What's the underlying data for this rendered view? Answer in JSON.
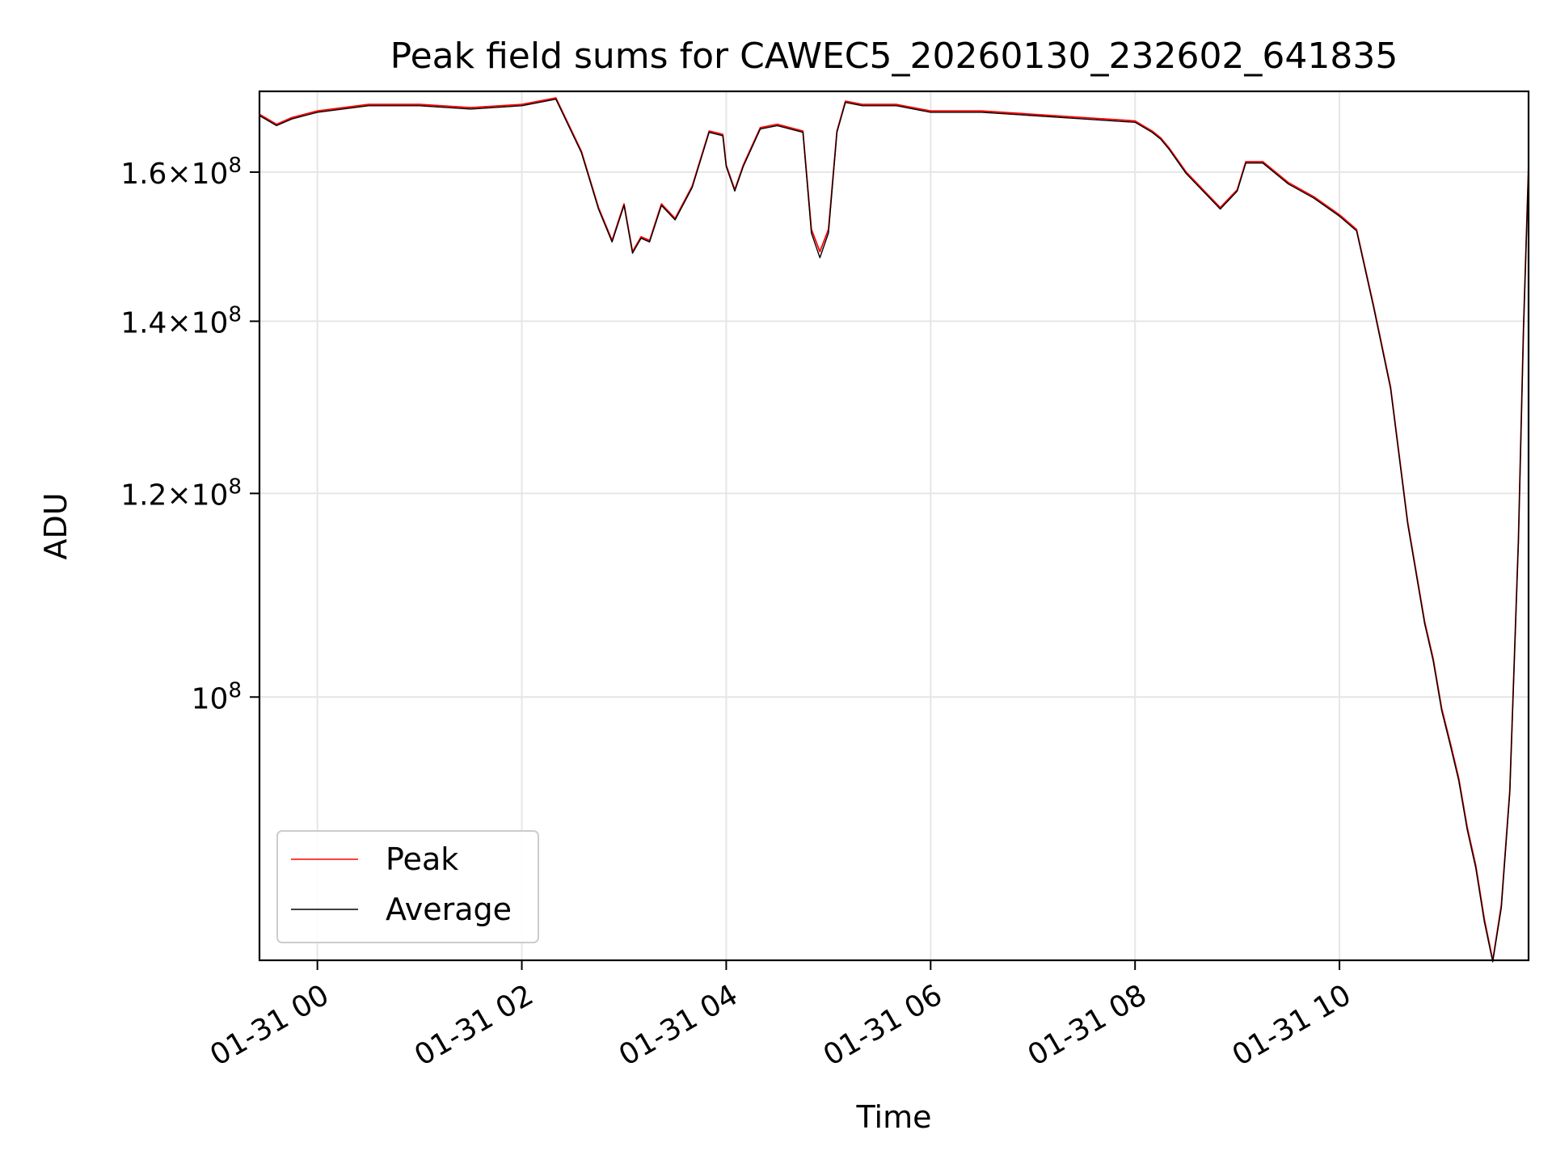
{
  "chart_data": {
    "type": "line",
    "title": "Peak field sums for CAWEC5_20260130_232602_641835",
    "xlabel": "Time",
    "ylabel": "ADU",
    "y_scale": "log",
    "xlim": [
      "2026-01-30 23:26",
      "2026-01-31 11:51"
    ],
    "ylim": [
      79000000.0,
      172000000.0
    ],
    "grid": true,
    "legend_position": "lower-left",
    "x_ticks": [
      {
        "value": "2026-01-31 00:00",
        "label": "01-31 00"
      },
      {
        "value": "2026-01-31 02:00",
        "label": "01-31 02"
      },
      {
        "value": "2026-01-31 04:00",
        "label": "01-31 04"
      },
      {
        "value": "2026-01-31 06:00",
        "label": "01-31 06"
      },
      {
        "value": "2026-01-31 08:00",
        "label": "01-31 08"
      },
      {
        "value": "2026-01-31 10:00",
        "label": "01-31 10"
      }
    ],
    "y_ticks": [
      {
        "value": 160000000,
        "label_mantissa": "1.6",
        "label_base": "10",
        "label_exp": "8"
      },
      {
        "value": 140000000,
        "label_mantissa": "1.4",
        "label_base": "10",
        "label_exp": "8"
      },
      {
        "value": 120000000,
        "label_mantissa": "1.2",
        "label_base": "10",
        "label_exp": "8"
      },
      {
        "value": 100000000,
        "label_mantissa": "",
        "label_base": "10",
        "label_exp": "8"
      }
    ],
    "series": [
      {
        "name": "Peak",
        "color": "#ff0000",
        "x": [
          "2026-01-30 23:26",
          "2026-01-30 23:36",
          "2026-01-30 23:45",
          "2026-01-31 00:00",
          "2026-01-31 00:30",
          "2026-01-31 01:00",
          "2026-01-31 01:30",
          "2026-01-31 02:00",
          "2026-01-31 02:20",
          "2026-01-31 02:35",
          "2026-01-31 02:45",
          "2026-01-31 02:53",
          "2026-01-31 03:00",
          "2026-01-31 03:05",
          "2026-01-31 03:10",
          "2026-01-31 03:15",
          "2026-01-31 03:22",
          "2026-01-31 03:30",
          "2026-01-31 03:40",
          "2026-01-31 03:50",
          "2026-01-31 03:58",
          "2026-01-31 04:00",
          "2026-01-31 04:05",
          "2026-01-31 04:10",
          "2026-01-31 04:20",
          "2026-01-31 04:30",
          "2026-01-31 04:45",
          "2026-01-31 04:50",
          "2026-01-31 04:55",
          "2026-01-31 05:00",
          "2026-01-31 05:05",
          "2026-01-31 05:10",
          "2026-01-31 05:20",
          "2026-01-31 05:40",
          "2026-01-31 06:00",
          "2026-01-31 06:30",
          "2026-01-31 07:00",
          "2026-01-31 07:30",
          "2026-01-31 08:00",
          "2026-01-31 08:10",
          "2026-01-31 08:15",
          "2026-01-31 08:20",
          "2026-01-31 08:30",
          "2026-01-31 08:50",
          "2026-01-31 09:00",
          "2026-01-31 09:05",
          "2026-01-31 09:15",
          "2026-01-31 09:30",
          "2026-01-31 09:45",
          "2026-01-31 10:00",
          "2026-01-31 10:10",
          "2026-01-31 10:20",
          "2026-01-31 10:30",
          "2026-01-31 10:40",
          "2026-01-31 10:50",
          "2026-01-31 10:55",
          "2026-01-31 11:00",
          "2026-01-31 11:05",
          "2026-01-31 11:10",
          "2026-01-31 11:15",
          "2026-01-31 11:20",
          "2026-01-31 11:25",
          "2026-01-31 11:30",
          "2026-01-31 11:35",
          "2026-01-31 11:40",
          "2026-01-31 11:45",
          "2026-01-31 11:48",
          "2026-01-31 11:51"
        ],
        "y": [
          168500000,
          167000000,
          168000000,
          169000000,
          170000000,
          170000000,
          169500000,
          170000000,
          171000000,
          163000000,
          155000000,
          150500000,
          155500000,
          149000000,
          151000000,
          150500000,
          155500000,
          153500000,
          158000000,
          166000000,
          165500000,
          161000000,
          157500000,
          161000000,
          166500000,
          167000000,
          166000000,
          152000000,
          149000000,
          152000000,
          166000000,
          170500000,
          170000000,
          170000000,
          169000000,
          169000000,
          168500000,
          168000000,
          167500000,
          166000000,
          165000000,
          163500000,
          160000000,
          155000000,
          157500000,
          161500000,
          161500000,
          158500000,
          156500000,
          154000000,
          152000000,
          142000000,
          132000000,
          117000000,
          107000000,
          103500000,
          99000000,
          96000000,
          93000000,
          89000000,
          86000000,
          82000000,
          79000000,
          83000000,
          92000000,
          115000000,
          139000000,
          161000000
        ]
      },
      {
        "name": "Average",
        "color": "#000000",
        "x": [
          "2026-01-30 23:26",
          "2026-01-30 23:36",
          "2026-01-30 23:45",
          "2026-01-31 00:00",
          "2026-01-31 00:30",
          "2026-01-31 01:00",
          "2026-01-31 01:30",
          "2026-01-31 02:00",
          "2026-01-31 02:20",
          "2026-01-31 02:35",
          "2026-01-31 02:45",
          "2026-01-31 02:53",
          "2026-01-31 03:00",
          "2026-01-31 03:05",
          "2026-01-31 03:10",
          "2026-01-31 03:15",
          "2026-01-31 03:22",
          "2026-01-31 03:30",
          "2026-01-31 03:40",
          "2026-01-31 03:50",
          "2026-01-31 03:58",
          "2026-01-31 04:00",
          "2026-01-31 04:05",
          "2026-01-31 04:10",
          "2026-01-31 04:20",
          "2026-01-31 04:30",
          "2026-01-31 04:45",
          "2026-01-31 04:50",
          "2026-01-31 04:55",
          "2026-01-31 05:00",
          "2026-01-31 05:05",
          "2026-01-31 05:10",
          "2026-01-31 05:20",
          "2026-01-31 05:40",
          "2026-01-31 06:00",
          "2026-01-31 06:30",
          "2026-01-31 07:00",
          "2026-01-31 07:30",
          "2026-01-31 08:00",
          "2026-01-31 08:10",
          "2026-01-31 08:15",
          "2026-01-31 08:20",
          "2026-01-31 08:30",
          "2026-01-31 08:50",
          "2026-01-31 09:00",
          "2026-01-31 09:05",
          "2026-01-31 09:15",
          "2026-01-31 09:30",
          "2026-01-31 09:45",
          "2026-01-31 10:00",
          "2026-01-31 10:10",
          "2026-01-31 10:20",
          "2026-01-31 10:30",
          "2026-01-31 10:40",
          "2026-01-31 10:50",
          "2026-01-31 10:55",
          "2026-01-31 11:00",
          "2026-01-31 11:05",
          "2026-01-31 11:10",
          "2026-01-31 11:15",
          "2026-01-31 11:20",
          "2026-01-31 11:25",
          "2026-01-31 11:30",
          "2026-01-31 11:35",
          "2026-01-31 11:40",
          "2026-01-31 11:45",
          "2026-01-31 11:48",
          "2026-01-31 11:51"
        ],
        "y": [
          168300000,
          166800000,
          167800000,
          168800000,
          169800000,
          169800000,
          169300000,
          169800000,
          170800000,
          162800000,
          154800000,
          150300000,
          155300000,
          148800000,
          150800000,
          150300000,
          155300000,
          153300000,
          157800000,
          165800000,
          165300000,
          160800000,
          157300000,
          160800000,
          166300000,
          166800000,
          165800000,
          151500000,
          148200000,
          151500000,
          165800000,
          170300000,
          169800000,
          169800000,
          168800000,
          168800000,
          168300000,
          167800000,
          167300000,
          165800000,
          164800000,
          163300000,
          159800000,
          154800000,
          157300000,
          161300000,
          161300000,
          158300000,
          156300000,
          153800000,
          151800000,
          141800000,
          131800000,
          116800000,
          106800000,
          103300000,
          98800000,
          95800000,
          92800000,
          88800000,
          85800000,
          81800000,
          78900000,
          82800000,
          91800000,
          114800000,
          138800000,
          160800000
        ]
      }
    ]
  }
}
